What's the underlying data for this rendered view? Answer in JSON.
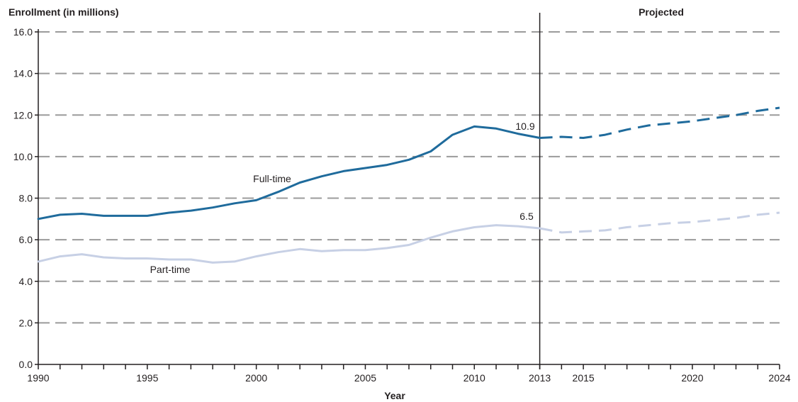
{
  "chart_data": {
    "type": "line",
    "ylabel": "Enrollment (in millions)",
    "xlabel": "Year",
    "projected_label": "Projected",
    "ylim": [
      0,
      16
    ],
    "xlim": [
      1990,
      2024
    ],
    "y_ticks": [
      "0.0",
      "2.0",
      "4.0",
      "6.0",
      "8.0",
      "10.0",
      "12.0",
      "14.0",
      "16.0"
    ],
    "x_tick_labels": [
      "1990",
      "1995",
      "2000",
      "2005",
      "2010",
      "2013",
      "2015",
      "2020",
      "2024"
    ],
    "projection_start": 2013,
    "grid": "horizontal dashed",
    "series": [
      {
        "name": "Full-time",
        "color": "#1f6b9c",
        "actual": {
          "x": [
            1990,
            1991,
            1992,
            1993,
            1994,
            1995,
            1996,
            1997,
            1998,
            1999,
            2000,
            2001,
            2002,
            2003,
            2004,
            2005,
            2006,
            2007,
            2008,
            2009,
            2010,
            2011,
            2012,
            2013
          ],
          "y": [
            7.0,
            7.2,
            7.25,
            7.15,
            7.15,
            7.15,
            7.3,
            7.4,
            7.55,
            7.75,
            7.9,
            8.3,
            8.75,
            9.05,
            9.3,
            9.45,
            9.6,
            9.85,
            10.25,
            11.05,
            11.45,
            11.35,
            11.1,
            10.9
          ]
        },
        "projected": {
          "x": [
            2013,
            2014,
            2015,
            2016,
            2017,
            2018,
            2019,
            2020,
            2021,
            2022,
            2023,
            2024
          ],
          "y": [
            10.9,
            10.95,
            10.9,
            11.05,
            11.3,
            11.5,
            11.6,
            11.7,
            11.85,
            12.0,
            12.2,
            12.35
          ]
        },
        "end_value_label": "10.9"
      },
      {
        "name": "Part-time",
        "color": "#c7d0e5",
        "actual": {
          "x": [
            1990,
            1991,
            1992,
            1993,
            1994,
            1995,
            1996,
            1997,
            1998,
            1999,
            2000,
            2001,
            2002,
            2003,
            2004,
            2005,
            2006,
            2007,
            2008,
            2009,
            2010,
            2011,
            2012,
            2013
          ],
          "y": [
            4.95,
            5.2,
            5.3,
            5.15,
            5.1,
            5.1,
            5.05,
            5.05,
            4.9,
            4.95,
            5.2,
            5.4,
            5.55,
            5.45,
            5.5,
            5.5,
            5.6,
            5.75,
            6.1,
            6.4,
            6.6,
            6.7,
            6.65,
            6.55
          ]
        },
        "projected": {
          "x": [
            2013,
            2014,
            2015,
            2016,
            2017,
            2018,
            2019,
            2020,
            2021,
            2022,
            2023,
            2024
          ],
          "y": [
            6.55,
            6.35,
            6.4,
            6.45,
            6.6,
            6.7,
            6.8,
            6.85,
            6.95,
            7.05,
            7.2,
            7.3
          ]
        },
        "end_value_label": "6.5"
      }
    ]
  }
}
